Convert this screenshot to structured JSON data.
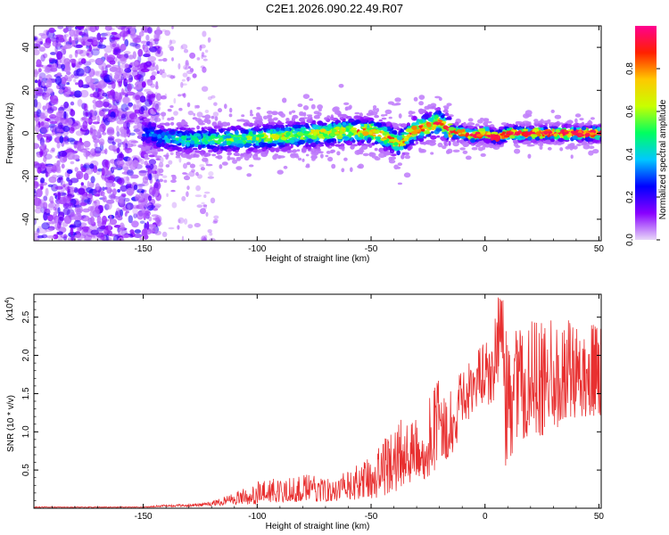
{
  "title": "C2E1.2026.090.22.49.R07",
  "chart_data": [
    {
      "type": "heatmap",
      "xlabel": "Height of straight line (km)",
      "ylabel": "Frequency (Hz)",
      "xlim": [
        -198,
        51
      ],
      "ylim": [
        -50,
        50
      ],
      "x_ticks": [
        -150,
        -100,
        -50,
        0,
        50
      ],
      "y_ticks": [
        -40,
        -20,
        0,
        20,
        40
      ],
      "ridge": [
        [
          -145,
          -2
        ],
        [
          -130,
          -3
        ],
        [
          -115,
          -3
        ],
        [
          -100,
          -2
        ],
        [
          -85,
          -1
        ],
        [
          -70,
          0
        ],
        [
          -60,
          1
        ],
        [
          -50,
          1
        ],
        [
          -42,
          -2
        ],
        [
          -38,
          -5
        ],
        [
          -30,
          2
        ],
        [
          -20,
          5
        ],
        [
          -15,
          1
        ],
        [
          -5,
          -1
        ],
        [
          0,
          0
        ],
        [
          5,
          -2
        ],
        [
          10,
          0
        ],
        [
          20,
          0
        ],
        [
          35,
          0
        ],
        [
          50,
          0
        ]
      ],
      "colorbar": {
        "label": "Normalized spectral amplitude",
        "range": [
          0,
          1
        ],
        "ticks": [
          0.0,
          0.2,
          0.4,
          0.6,
          0.8
        ],
        "tick_labels": [
          "0.0",
          "0.2",
          "0.4",
          "0.6",
          "0.8"
        ],
        "colors": [
          "#e8d8f8",
          "#8800ff",
          "#0000ff",
          "#00c8ff",
          "#00ff60",
          "#c8ff00",
          "#ffc800",
          "#ff2000",
          "#ff0090"
        ]
      },
      "grid": false
    },
    {
      "type": "line",
      "xlabel": "Height of straight line (km)",
      "ylabel": "SNR (10 * v/v)",
      "y_multiplier_label": "(x10",
      "y_multiplier_exp": "4",
      "xlim": [
        -198,
        51
      ],
      "ylim": [
        0.0,
        2.8
      ],
      "x_ticks": [
        -150,
        -100,
        -50,
        0,
        50
      ],
      "y_ticks": [
        0.5,
        1.0,
        1.5,
        2.0,
        2.5
      ],
      "y_tick_labels": [
        "0.5",
        "1.0",
        "1.5",
        "2.0",
        "2.5"
      ],
      "series": [
        {
          "color": "#e83030",
          "envelope_x": [
            -198,
            -150,
            -140,
            -130,
            -120,
            -110,
            -100,
            -90,
            -80,
            -70,
            -60,
            -50,
            -45,
            -40,
            -35,
            -30,
            -25,
            -20,
            -15,
            -10,
            -5,
            0,
            3,
            6,
            8,
            9,
            10,
            15,
            20,
            30,
            40,
            50
          ],
          "envelope_min": [
            0.01,
            0.01,
            0.02,
            0.02,
            0.03,
            0.05,
            0.05,
            0.08,
            0.08,
            0.09,
            0.1,
            0.12,
            0.15,
            0.2,
            0.3,
            0.3,
            0.4,
            0.55,
            0.7,
            0.9,
            1.3,
            1.4,
            1.3,
            1.6,
            1.9,
            0.55,
            0.6,
            0.9,
            0.9,
            1.0,
            1.2,
            1.2
          ],
          "envelope_max": [
            0.02,
            0.02,
            0.05,
            0.05,
            0.1,
            0.22,
            0.35,
            0.4,
            0.45,
            0.4,
            0.48,
            0.7,
            0.9,
            1.1,
            1.25,
            1.15,
            1.4,
            1.7,
            1.6,
            1.8,
            2.0,
            2.25,
            2.2,
            2.8,
            2.75,
            2.4,
            2.4,
            2.4,
            2.45,
            2.5,
            2.5,
            2.4
          ]
        }
      ],
      "grid": false
    }
  ]
}
